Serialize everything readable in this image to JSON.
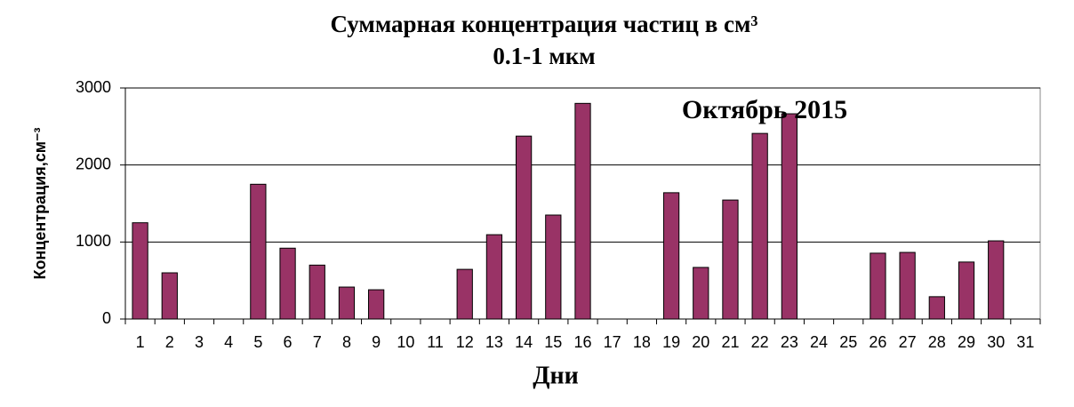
{
  "chart_data": {
    "type": "bar",
    "title": "Суммарная  концентрация частиц  в см³",
    "subtitle": "0.1-1 мкм",
    "annotation": "Октябрь 2015",
    "x_label": "Дни",
    "y_label": "Концентрация,см⁻³",
    "categories": [
      "1",
      "2",
      "3",
      "4",
      "5",
      "6",
      "7",
      "8",
      "9",
      "10",
      "11",
      "12",
      "13",
      "14",
      "15",
      "16",
      "17",
      "18",
      "19",
      "20",
      "21",
      "22",
      "23",
      "24",
      "25",
      "26",
      "27",
      "28",
      "29",
      "30",
      "31"
    ],
    "values": [
      1250,
      600,
      null,
      null,
      1750,
      920,
      700,
      415,
      380,
      null,
      null,
      645,
      1095,
      2375,
      1350,
      2800,
      null,
      null,
      1640,
      670,
      1545,
      2410,
      2665,
      null,
      null,
      855,
      865,
      290,
      740,
      1015,
      null
    ],
    "color": "#993366",
    "ylim": [
      0,
      3000
    ],
    "yticks": [
      0,
      1000,
      2000,
      3000
    ],
    "grid": true
  }
}
